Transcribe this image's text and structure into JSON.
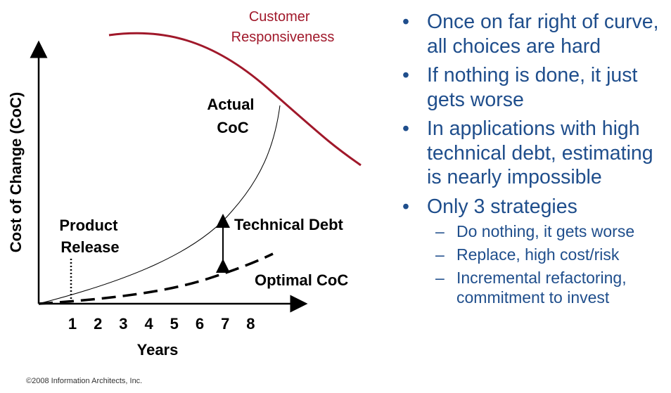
{
  "diagram": {
    "customer_responsiveness_label": [
      "Customer",
      "Responsiveness"
    ],
    "actual_coc_label": [
      "Actual",
      "CoC"
    ],
    "product_release_label": [
      "Product",
      "Release"
    ],
    "technical_debt_label": "Technical Debt",
    "optimal_coc_label": "Optimal CoC",
    "y_axis_label": "Cost of Change (CoC)",
    "x_axis_label": "Years",
    "x_ticks": [
      "1",
      "2",
      "3",
      "4",
      "5",
      "6",
      "7",
      "8"
    ],
    "colors": {
      "customer_curve": "#a0182a",
      "axis": "#000000"
    }
  },
  "bullets": [
    {
      "text": "Once on far right of curve, all choices are hard",
      "subs": []
    },
    {
      "text": "If nothing is done, it just gets worse",
      "subs": []
    },
    {
      "text": "In applications with high technical debt, estimating is nearly impossible",
      "subs": []
    },
    {
      "text": "Only 3 strategies",
      "subs": [
        "Do nothing, it gets worse",
        "Replace, high cost/risk",
        "Incremental refactoring, commitment to invest"
      ]
    }
  ],
  "bullet_glyph": "•",
  "sub_glyph": "–",
  "copyright": "©2008 Information Architects, Inc."
}
